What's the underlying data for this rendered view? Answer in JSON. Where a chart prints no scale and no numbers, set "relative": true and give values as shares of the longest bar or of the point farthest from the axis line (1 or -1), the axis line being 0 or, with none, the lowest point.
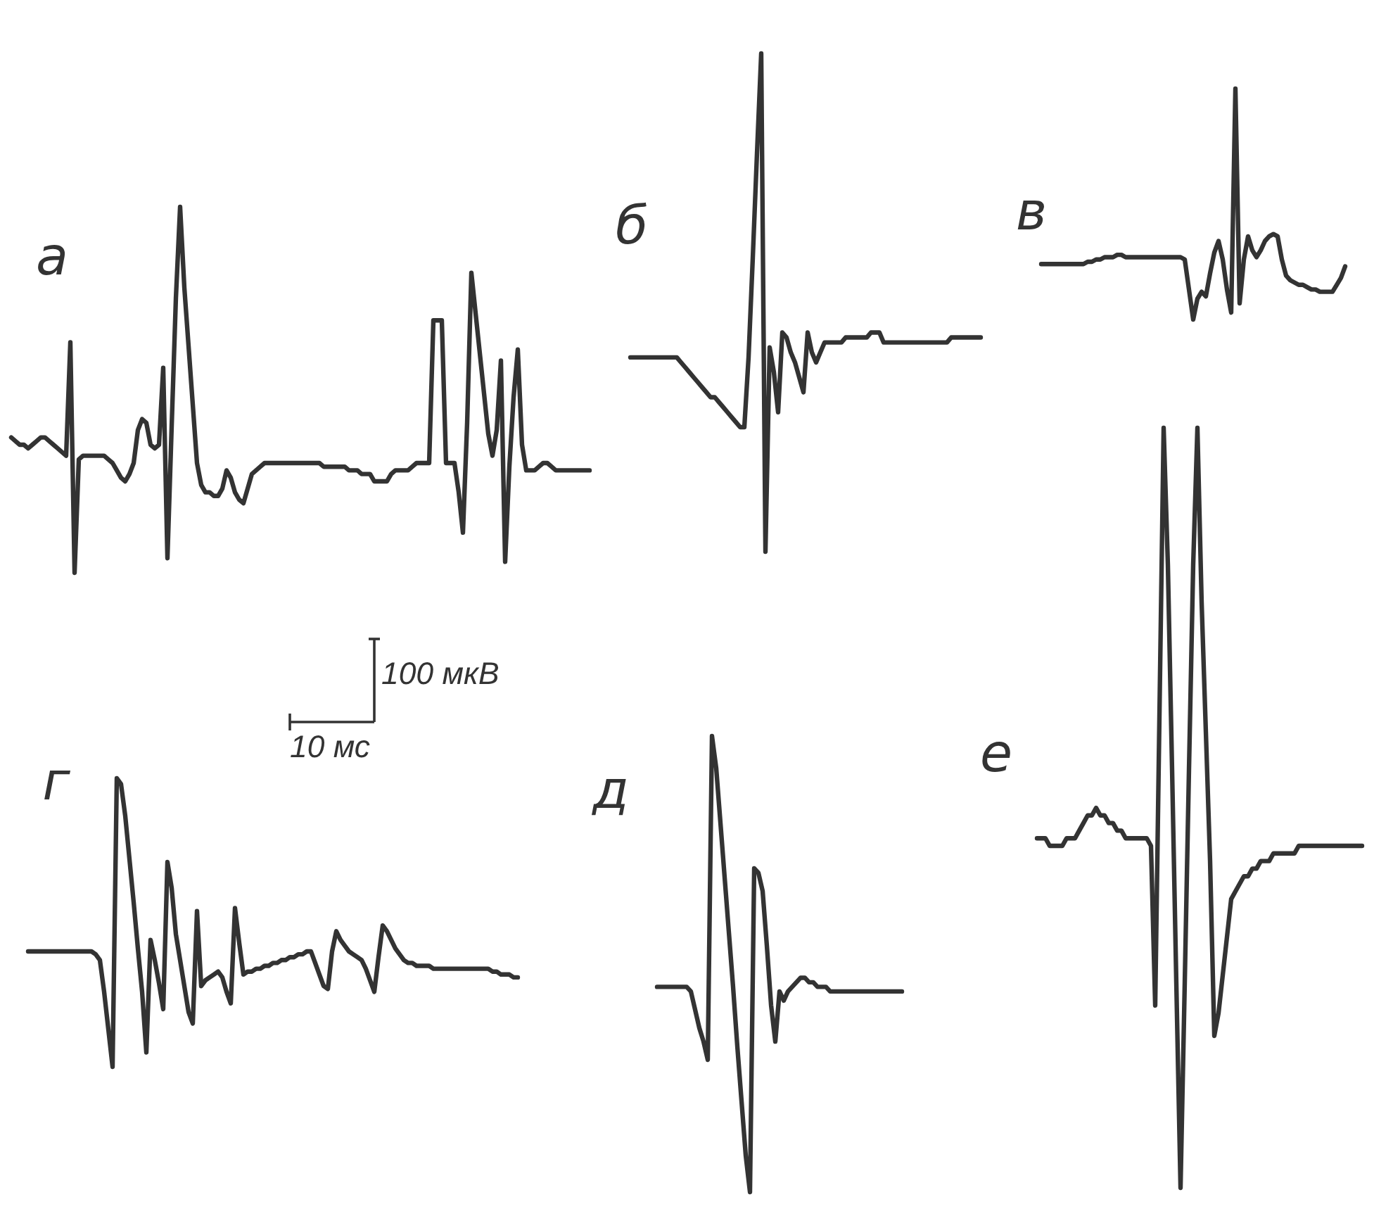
{
  "chart_data": [
    {
      "type": "line",
      "title": "а",
      "color": "#333333",
      "relative": true,
      "categories": [
        null,
        null,
        null,
        null,
        null,
        null,
        null,
        null,
        null,
        null,
        null,
        null,
        null,
        null,
        null,
        null,
        null,
        null,
        null,
        null,
        null,
        null,
        null,
        null,
        null,
        null,
        null,
        null,
        null,
        null,
        null,
        null,
        null,
        null,
        null,
        null,
        null,
        null,
        null,
        null,
        null,
        null,
        null,
        null,
        null,
        null,
        null,
        null,
        null,
        null,
        null,
        null,
        null,
        null,
        null,
        null,
        null,
        null,
        null,
        null,
        null,
        null,
        null,
        null,
        null,
        null,
        null,
        null,
        null,
        null,
        null,
        null,
        null,
        null,
        null,
        null,
        null,
        null,
        null,
        null,
        null,
        null,
        null,
        null,
        null,
        null,
        null,
        null,
        null,
        null,
        null,
        null,
        null,
        null,
        null,
        null,
        null,
        null,
        null,
        null,
        null,
        null,
        null,
        null,
        null,
        null,
        null,
        null,
        null,
        null,
        null,
        null,
        null,
        null,
        null,
        null,
        null,
        null,
        null,
        null,
        null,
        null,
        null,
        null,
        null,
        null,
        null,
        null,
        null,
        null,
        null,
        null,
        null,
        null,
        null,
        null,
        null,
        null
      ],
      "values": [
        0.37,
        0.36,
        0.35,
        0.35,
        0.34,
        0.35,
        0.36,
        0.37,
        0.37,
        0.36,
        0.35,
        0.34,
        0.33,
        0.32,
        0.63,
        0,
        0.31,
        0.32,
        0.32,
        0.32,
        0.32,
        0.32,
        0.32,
        0.31,
        0.3,
        0.28,
        0.26,
        0.25,
        0.27,
        0.3,
        0.39,
        0.42,
        0.41,
        0.35,
        0.34,
        0.35,
        0.56,
        0.04,
        0.4,
        0.75,
        1,
        0.78,
        0.62,
        0.46,
        0.3,
        0.24,
        0.22,
        0.22,
        0.21,
        0.21,
        0.23,
        0.28,
        0.26,
        0.22,
        0.2,
        0.19,
        0.23,
        0.27,
        0.28,
        0.29,
        0.3,
        0.3,
        0.3,
        0.3,
        0.3,
        0.3,
        0.3,
        0.3,
        0.3,
        0.3,
        0.3,
        0.3,
        0.3,
        0.3,
        0.29,
        0.29,
        0.29,
        0.29,
        0.29,
        0.29,
        0.28,
        0.28,
        0.28,
        0.27,
        0.27,
        0.27,
        0.25,
        0.25,
        0.25,
        0.25,
        0.27,
        0.28,
        0.28,
        0.28,
        0.28,
        0.29,
        0.3,
        0.3,
        0.3,
        0.3,
        0.69,
        0.69,
        0.69,
        0.3,
        0.3,
        0.3,
        0.22,
        0.11,
        0.41,
        0.82,
        0.71,
        0.6,
        0.49,
        0.38,
        0.32,
        0.39,
        0.58,
        0.03,
        0.29,
        0.48,
        0.61,
        0.35,
        0.28,
        0.28,
        0.28,
        0.29,
        0.3,
        0.3,
        0.29,
        0.28,
        0.28,
        0.28,
        0.28,
        0.28,
        0.28,
        0.28,
        0.28,
        0.28
      ]
    },
    {
      "type": "line",
      "title": "б",
      "color": "#333333",
      "relative": true,
      "categories": [
        null,
        null,
        null,
        null,
        null,
        null,
        null,
        null,
        null,
        null,
        null,
        null,
        null,
        null,
        null,
        null,
        null,
        null,
        null,
        null,
        null,
        null,
        null,
        null,
        null,
        null,
        null,
        null,
        null,
        null,
        null,
        null,
        null,
        null,
        null,
        null,
        null,
        null,
        null,
        null,
        null,
        null,
        null,
        null,
        null,
        null,
        null,
        null,
        null,
        null,
        null,
        null,
        null,
        null,
        null,
        null,
        null,
        null,
        null,
        null,
        null,
        null,
        null,
        null,
        null,
        null,
        null,
        null,
        null,
        null,
        null,
        null,
        null,
        null,
        null,
        null,
        null,
        null,
        null,
        null,
        null,
        null,
        null,
        null
      ],
      "values": [
        0.39,
        0.39,
        0.39,
        0.39,
        0.39,
        0.39,
        0.39,
        0.39,
        0.39,
        0.39,
        0.39,
        0.39,
        0.38,
        0.37,
        0.36,
        0.35,
        0.34,
        0.33,
        0.32,
        0.31,
        0.31,
        0.3,
        0.29,
        0.28,
        0.27,
        0.26,
        0.25,
        0.25,
        0.39,
        0.59,
        0.8,
        1,
        0,
        0.41,
        0.36,
        0.28,
        0.44,
        0.43,
        0.4,
        0.38,
        0.35,
        0.32,
        0.44,
        0.4,
        0.38,
        0.4,
        0.42,
        0.42,
        0.42,
        0.42,
        0.42,
        0.43,
        0.43,
        0.43,
        0.43,
        0.43,
        0.43,
        0.44,
        0.44,
        0.44,
        0.42,
        0.42,
        0.42,
        0.42,
        0.42,
        0.42,
        0.42,
        0.42,
        0.42,
        0.42,
        0.42,
        0.42,
        0.42,
        0.42,
        0.42,
        0.42,
        0.43,
        0.43,
        0.43,
        0.43,
        0.43,
        0.43,
        0.43,
        0.43
      ]
    },
    {
      "type": "line",
      "title": "в",
      "color": "#333333",
      "relative": true,
      "categories": [
        null,
        null,
        null,
        null,
        null,
        null,
        null,
        null,
        null,
        null,
        null,
        null,
        null,
        null,
        null,
        null,
        null,
        null,
        null,
        null,
        null,
        null,
        null,
        null,
        null,
        null,
        null,
        null,
        null,
        null,
        null,
        null,
        null,
        null,
        null,
        null,
        null,
        null,
        null,
        null,
        null,
        null,
        null,
        null,
        null,
        null,
        null,
        null,
        null,
        null,
        null,
        null,
        null,
        null,
        null,
        null,
        null,
        null,
        null,
        null,
        null,
        null,
        null,
        null,
        null,
        null,
        null,
        null,
        null,
        null,
        null,
        null,
        null
      ],
      "values": [
        0.24,
        0.24,
        0.24,
        0.24,
        0.24,
        0.24,
        0.24,
        0.24,
        0.24,
        0.24,
        0.24,
        0.25,
        0.25,
        0.26,
        0.26,
        0.27,
        0.27,
        0.27,
        0.28,
        0.28,
        0.27,
        0.27,
        0.27,
        0.27,
        0.27,
        0.27,
        0.27,
        0.27,
        0.27,
        0.27,
        0.27,
        0.27,
        0.27,
        0.27,
        0.26,
        0.13,
        0,
        0.09,
        0.12,
        0.1,
        0.2,
        0.29,
        0.34,
        0.26,
        0.13,
        0.03,
        1,
        0.07,
        0.26,
        0.36,
        0.3,
        0.27,
        0.3,
        0.34,
        0.36,
        0.37,
        0.36,
        0.26,
        0.19,
        0.17,
        0.16,
        0.15,
        0.15,
        0.14,
        0.13,
        0.13,
        0.12,
        0.12,
        0.12,
        0.12,
        0.15,
        0.18,
        0.23
      ]
    },
    {
      "type": "line",
      "title": "г",
      "color": "#333333",
      "relative": true,
      "categories": [
        null,
        null,
        null,
        null,
        null,
        null,
        null,
        null,
        null,
        null,
        null,
        null,
        null,
        null,
        null,
        null,
        null,
        null,
        null,
        null,
        null,
        null,
        null,
        null,
        null,
        null,
        null,
        null,
        null,
        null,
        null,
        null,
        null,
        null,
        null,
        null,
        null,
        null,
        null,
        null,
        null,
        null,
        null,
        null,
        null,
        null,
        null,
        null,
        null,
        null,
        null,
        null,
        null,
        null,
        null,
        null,
        null,
        null,
        null,
        null,
        null,
        null,
        null,
        null,
        null,
        null,
        null,
        null,
        null,
        null,
        null,
        null,
        null,
        null,
        null,
        null,
        null,
        null,
        null,
        null,
        null,
        null,
        null,
        null,
        null,
        null,
        null,
        null,
        null,
        null,
        null,
        null,
        null,
        null,
        null,
        null,
        null,
        null,
        null,
        null,
        null,
        null,
        null,
        null,
        null,
        null,
        null,
        null,
        null,
        null,
        null,
        null,
        null,
        null,
        null,
        null,
        null
      ],
      "values": [
        0.4,
        0.4,
        0.4,
        0.4,
        0.4,
        0.4,
        0.4,
        0.4,
        0.4,
        0.4,
        0.4,
        0.4,
        0.4,
        0.4,
        0.4,
        0.4,
        0.39,
        0.37,
        0.26,
        0.13,
        0,
        1,
        0.98,
        0.87,
        0.72,
        0.57,
        0.41,
        0.26,
        0.05,
        0.44,
        0.37,
        0.29,
        0.2,
        0.71,
        0.62,
        0.46,
        0.37,
        0.28,
        0.19,
        0.15,
        0.54,
        0.28,
        0.3,
        0.31,
        0.32,
        0.33,
        0.31,
        0.26,
        0.22,
        0.55,
        0.43,
        0.32,
        0.33,
        0.33,
        0.34,
        0.34,
        0.35,
        0.35,
        0.36,
        0.36,
        0.37,
        0.37,
        0.38,
        0.38,
        0.39,
        0.39,
        0.4,
        0.4,
        0.36,
        0.32,
        0.28,
        0.27,
        0.4,
        0.47,
        0.44,
        0.42,
        0.4,
        0.39,
        0.38,
        0.37,
        0.34,
        0.3,
        0.26,
        0.38,
        0.49,
        0.47,
        0.44,
        0.41,
        0.39,
        0.37,
        0.36,
        0.36,
        0.35,
        0.35,
        0.35,
        0.35,
        0.34,
        0.34,
        0.34,
        0.34,
        0.34,
        0.34,
        0.34,
        0.34,
        0.34,
        0.34,
        0.34,
        0.34,
        0.34,
        0.34,
        0.33,
        0.33,
        0.32,
        0.32,
        0.32,
        0.31,
        0.31
      ]
    },
    {
      "type": "line",
      "title": "д",
      "color": "#333333",
      "relative": true,
      "categories": [
        null,
        null,
        null,
        null,
        null,
        null,
        null,
        null,
        null,
        null,
        null,
        null,
        null,
        null,
        null,
        null,
        null,
        null,
        null,
        null,
        null,
        null,
        null,
        null,
        null,
        null,
        null,
        null,
        null,
        null,
        null,
        null,
        null,
        null,
        null,
        null,
        null,
        null,
        null,
        null,
        null,
        null,
        null,
        null,
        null,
        null,
        null,
        null,
        null,
        null,
        null,
        null,
        null,
        null,
        null,
        null,
        null,
        null,
        null
      ],
      "values": [
        0.45,
        0.45,
        0.45,
        0.45,
        0.45,
        0.45,
        0.45,
        0.45,
        0.44,
        0.4,
        0.36,
        0.33,
        0.29,
        1,
        0.93,
        0.81,
        0.69,
        0.57,
        0.45,
        0.32,
        0.2,
        0.08,
        0,
        0.71,
        0.7,
        0.66,
        0.54,
        0.41,
        0.33,
        0.44,
        0.42,
        0.44,
        0.45,
        0.46,
        0.47,
        0.47,
        0.46,
        0.46,
        0.45,
        0.45,
        0.45,
        0.44,
        0.44,
        0.44,
        0.44,
        0.44,
        0.44,
        0.44,
        0.44,
        0.44,
        0.44,
        0.44,
        0.44,
        0.44,
        0.44,
        0.44,
        0.44,
        0.44,
        0.44
      ]
    },
    {
      "type": "line",
      "title": "е",
      "color": "#333333",
      "relative": true,
      "categories": [
        null,
        null,
        null,
        null,
        null,
        null,
        null,
        null,
        null,
        null,
        null,
        null,
        null,
        null,
        null,
        null,
        null,
        null,
        null,
        null,
        null,
        null,
        null,
        null,
        null,
        null,
        null,
        null,
        null,
        null,
        null,
        null,
        null,
        null,
        null,
        null,
        null,
        null,
        null,
        null,
        null,
        null,
        null,
        null,
        null,
        null,
        null,
        null,
        null,
        null,
        null,
        null,
        null,
        null,
        null,
        null,
        null,
        null,
        null,
        null,
        null,
        null,
        null,
        null,
        null,
        null,
        null,
        null,
        null,
        null,
        null,
        null,
        null,
        null,
        null,
        null,
        null,
        null
      ],
      "values": [
        0.46,
        0.46,
        0.46,
        0.45,
        0.45,
        0.45,
        0.45,
        0.46,
        0.46,
        0.46,
        0.47,
        0.48,
        0.49,
        0.49,
        0.5,
        0.49,
        0.49,
        0.48,
        0.48,
        0.47,
        0.47,
        0.46,
        0.46,
        0.46,
        0.46,
        0.46,
        0.46,
        0.45,
        0.24,
        0.62,
        1,
        0.82,
        0.55,
        0.27,
        0,
        0.27,
        0.55,
        0.82,
        1,
        0.77,
        0.6,
        0.43,
        0.2,
        0.23,
        0.28,
        0.33,
        0.38,
        0.39,
        0.4,
        0.41,
        0.41,
        0.42,
        0.42,
        0.43,
        0.43,
        0.43,
        0.44,
        0.44,
        0.44,
        0.44,
        0.44,
        0.44,
        0.45,
        0.45,
        0.45,
        0.45,
        0.45,
        0.45,
        0.45,
        0.45,
        0.45,
        0.45,
        0.45,
        0.45,
        0.45,
        0.45,
        0.45,
        0.45
      ]
    },
    {
      "type": "other",
      "annotations": [
        "100 мкВ",
        "10 мс"
      ]
    }
  ]
}
